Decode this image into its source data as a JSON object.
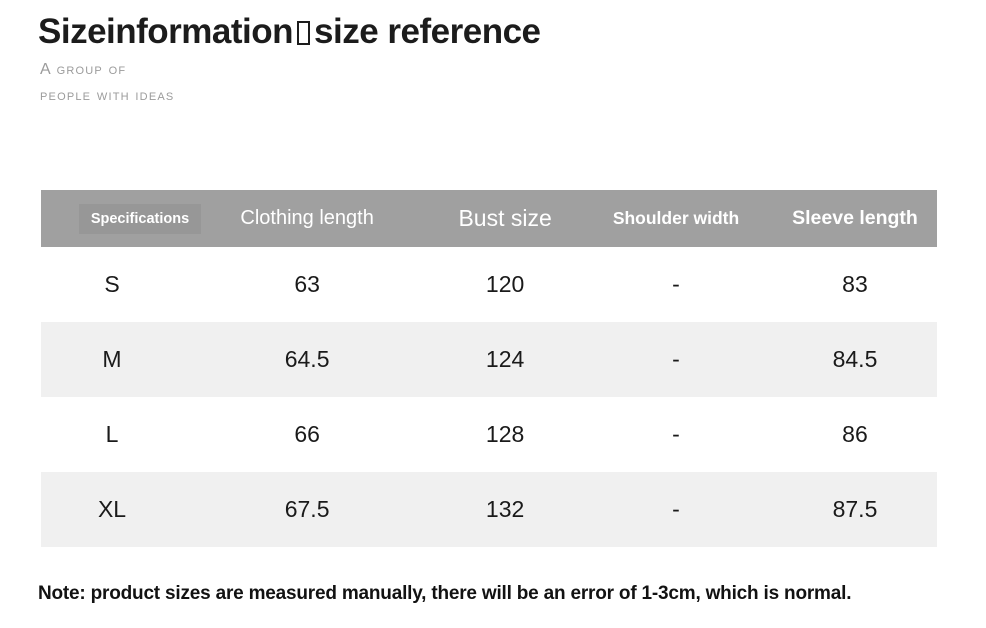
{
  "title": {
    "part1": "Sizeinformation",
    "part2": "size reference",
    "missing_glyph": "□"
  },
  "tagline": {
    "line1": "A group of",
    "line2": "people with ideas"
  },
  "chart_data": {
    "type": "table",
    "title": "Sizeinformation size reference",
    "columns": [
      "Specifications",
      "Clothing length",
      "Bust size",
      "Shoulder width",
      "Sleeve length"
    ],
    "rows": [
      [
        "S",
        "63",
        "120",
        "-",
        "83"
      ],
      [
        "M",
        "64.5",
        "124",
        "-",
        "84.5"
      ],
      [
        "L",
        "66",
        "128",
        "-",
        "86"
      ],
      [
        "XL",
        "67.5",
        "132",
        "-",
        "87.5"
      ]
    ]
  },
  "note": "Note: product sizes are measured manually, there will be an error of 1-3cm, which is normal.",
  "colors": {
    "header_bg": "#a0a0a0",
    "header_chip_bg": "#979797",
    "stripe_bg": "#f0f0f0",
    "header_text": "#ffffff",
    "body_text": "#1a1a1a",
    "tagline_text": "#9b9b9b",
    "title_text": "#1c1c1c"
  }
}
